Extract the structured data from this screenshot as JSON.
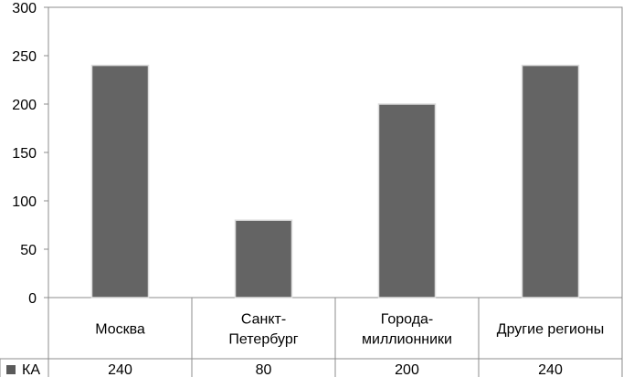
{
  "chart_data": {
    "type": "bar",
    "categories": [
      [
        "Москва"
      ],
      [
        "Санкт-",
        "Петербург"
      ],
      [
        "Города-",
        "миллионники"
      ],
      [
        "Другие регионы"
      ]
    ],
    "series": [
      {
        "name": "КА",
        "values": [
          240,
          80,
          200,
          240
        ],
        "data_labels": [
          "240",
          "80",
          "200",
          "240"
        ]
      }
    ],
    "ylim": [
      0,
      300
    ],
    "yticks": [
      0,
      50,
      100,
      150,
      200,
      250,
      300
    ],
    "ytick_labels": [
      "0",
      "50",
      "100",
      "150",
      "200",
      "250",
      "300"
    ],
    "grid": "none",
    "legend": "data table, bottom-left",
    "colors": {
      "bar": "#646464",
      "bar_stroke": "#dcdcdc",
      "axis": "#8c8c8c",
      "legend_key": "#5a5a5a"
    }
  }
}
